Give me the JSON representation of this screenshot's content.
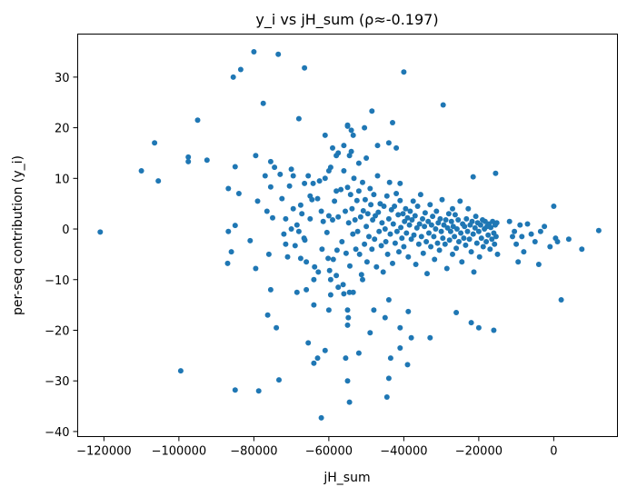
{
  "chart_data": {
    "type": "scatter",
    "title": "y_i vs jH_sum  (ρ≈-0.197)",
    "xlabel": "jH_sum",
    "ylabel": "per-seq contribution (y_i)",
    "xlim": [
      -127000,
      17000
    ],
    "ylim": [
      -41,
      38.5
    ],
    "xticks": [
      -120000,
      -100000,
      -80000,
      -60000,
      -40000,
      -20000,
      0
    ],
    "yticks": [
      -40,
      -30,
      -20,
      -10,
      0,
      10,
      20,
      30
    ],
    "grid": false,
    "color": "#1f77b4",
    "points": [
      [
        -121000,
        -0.6
      ],
      [
        -110000,
        11.5
      ],
      [
        -106500,
        17.0
      ],
      [
        -105500,
        9.5
      ],
      [
        -99500,
        -28.0
      ],
      [
        -97500,
        14.2
      ],
      [
        -97500,
        13.3
      ],
      [
        -95000,
        21.5
      ],
      [
        -92500,
        13.6
      ],
      [
        -87000,
        -6.8
      ],
      [
        -86800,
        -0.5
      ],
      [
        -86800,
        8.0
      ],
      [
        -86000,
        -4.5
      ],
      [
        -85500,
        30.0
      ],
      [
        -85000,
        12.3
      ],
      [
        -85000,
        0.7
      ],
      [
        -85000,
        -31.8
      ],
      [
        -84000,
        7.0
      ],
      [
        -83500,
        31.5
      ],
      [
        -81000,
        -2.3
      ],
      [
        -80000,
        35.0
      ],
      [
        -79500,
        14.5
      ],
      [
        -79500,
        -7.8
      ],
      [
        -79000,
        5.5
      ],
      [
        -78700,
        -32.0
      ],
      [
        -77500,
        24.8
      ],
      [
        -77000,
        10.5
      ],
      [
        -76500,
        3.5
      ],
      [
        -76300,
        -17.0
      ],
      [
        -76000,
        -5.0
      ],
      [
        -75500,
        8.3
      ],
      [
        -75500,
        13.3
      ],
      [
        -75000,
        2.2
      ],
      [
        -74500,
        12.2
      ],
      [
        -74000,
        -19.5
      ],
      [
        -73500,
        34.5
      ],
      [
        -73300,
        -29.8
      ],
      [
        -73000,
        10.8
      ],
      [
        -72000,
        -1.0
      ],
      [
        -71500,
        -3.0
      ],
      [
        -71000,
        -5.5
      ],
      [
        -70500,
        8.5
      ],
      [
        -70000,
        11.8
      ],
      [
        -69500,
        10.5
      ],
      [
        -69000,
        -3.3
      ],
      [
        -68500,
        0.8
      ],
      [
        -68000,
        21.8
      ],
      [
        -67500,
        4.7
      ],
      [
        -67200,
        3.0
      ],
      [
        -66600,
        -1.8
      ],
      [
        -66400,
        -2.2
      ],
      [
        -66000,
        -6.5
      ],
      [
        -65500,
        10.5
      ],
      [
        -65000,
        2.0
      ],
      [
        -64500,
        5.8
      ],
      [
        -64200,
        9.0
      ],
      [
        -63800,
        -7.5
      ],
      [
        -63000,
        6.0
      ],
      [
        -62800,
        -8.5
      ],
      [
        -62000,
        3.5
      ],
      [
        -61800,
        -4.0
      ],
      [
        -61500,
        1.5
      ],
      [
        -61000,
        10.0
      ],
      [
        -60500,
        -0.7
      ],
      [
        -60200,
        -5.8
      ],
      [
        -60000,
        2.6
      ],
      [
        -59800,
        -8.2
      ],
      [
        -59500,
        12.2
      ],
      [
        -59500,
        -10.0
      ],
      [
        -59000,
        1.8
      ],
      [
        -58800,
        -6.0
      ],
      [
        -58500,
        5.5
      ],
      [
        -58000,
        -9.2
      ],
      [
        -57800,
        -4.2
      ],
      [
        -57500,
        2.4
      ],
      [
        -56800,
        7.8
      ],
      [
        -56500,
        -2.5
      ],
      [
        -56200,
        -11.0
      ],
      [
        -56000,
        11.5
      ],
      [
        -55600,
        3.5
      ],
      [
        -55400,
        -4.8
      ],
      [
        -55000,
        8.2
      ],
      [
        -55000,
        -16.0
      ],
      [
        -54700,
        1.2
      ],
      [
        -54400,
        -7.3
      ],
      [
        -54200,
        6.8
      ],
      [
        -54000,
        15.3
      ],
      [
        -53800,
        4.0
      ],
      [
        -53600,
        -1.0
      ],
      [
        -53300,
        10.0
      ],
      [
        -53000,
        1.8
      ],
      [
        -52800,
        -4.0
      ],
      [
        -52500,
        5.6
      ],
      [
        -52300,
        -0.5
      ],
      [
        -52000,
        7.5
      ],
      [
        -51800,
        -5.0
      ],
      [
        -51500,
        2.4
      ],
      [
        -51300,
        -9.0
      ],
      [
        -51000,
        9.2
      ],
      [
        -50800,
        3.6
      ],
      [
        -50500,
        -3.0
      ],
      [
        -50300,
        5.8
      ],
      [
        -50000,
        0.5
      ],
      [
        -49800,
        -6.5
      ],
      [
        -49600,
        3.0
      ],
      [
        -49300,
        -1.5
      ],
      [
        -49000,
        8.0
      ],
      [
        -48800,
        4.8
      ],
      [
        -48500,
        -4.0
      ],
      [
        -48300,
        1.8
      ],
      [
        -48000,
        6.8
      ],
      [
        -47800,
        -2.0
      ],
      [
        -47600,
        2.6
      ],
      [
        -47300,
        -7.5
      ],
      [
        -47000,
        10.5
      ],
      [
        -46800,
        3.3
      ],
      [
        -46600,
        -0.5
      ],
      [
        -46300,
        5.0
      ],
      [
        -46000,
        -3.3
      ],
      [
        -45800,
        1.2
      ],
      [
        -45500,
        -8.5
      ],
      [
        -45300,
        4.5
      ],
      [
        -45000,
        0.0
      ],
      [
        -44800,
        -2.5
      ],
      [
        -44500,
        6.5
      ],
      [
        -44300,
        -5.0
      ],
      [
        -44000,
        2.0
      ],
      [
        -43800,
        9.2
      ],
      [
        -43600,
        -1.0
      ],
      [
        -43300,
        3.8
      ],
      [
        -43000,
        -6.8
      ],
      [
        -42800,
        1.0
      ],
      [
        -42500,
        4.5
      ],
      [
        -42300,
        -2.8
      ],
      [
        -42000,
        7.0
      ],
      [
        -41800,
        -0.5
      ],
      [
        -41500,
        2.8
      ],
      [
        -41300,
        -4.5
      ],
      [
        -41000,
        5.6
      ],
      [
        -40800,
        0.3
      ],
      [
        -40500,
        -1.8
      ],
      [
        -40200,
        3.0
      ],
      [
        -40000,
        -3.5
      ],
      [
        -39800,
        1.5
      ],
      [
        -39500,
        4.0
      ],
      [
        -39300,
        -0.8
      ],
      [
        -39000,
        2.2
      ],
      [
        -38800,
        -5.5
      ],
      [
        -38500,
        0.8
      ],
      [
        -38300,
        3.5
      ],
      [
        -38000,
        -2.0
      ],
      [
        -37800,
        1.8
      ],
      [
        -37500,
        5.5
      ],
      [
        -37300,
        -1.2
      ],
      [
        -37000,
        2.6
      ],
      [
        -36800,
        -7.0
      ],
      [
        -36500,
        0.2
      ],
      [
        -36300,
        4.5
      ],
      [
        -36000,
        -3.0
      ],
      [
        -35800,
        1.0
      ],
      [
        -35500,
        6.8
      ],
      [
        -35300,
        -1.5
      ],
      [
        -35000,
        2.0
      ],
      [
        -34800,
        -4.8
      ],
      [
        -34500,
        0.5
      ],
      [
        -34300,
        3.2
      ],
      [
        -34000,
        -2.5
      ],
      [
        -33800,
        -8.8
      ],
      [
        -33500,
        1.5
      ],
      [
        -33300,
        -0.8
      ],
      [
        -33000,
        4.8
      ],
      [
        -32800,
        -3.5
      ],
      [
        -32600,
        0.8
      ],
      [
        -32300,
        2.5
      ],
      [
        -32000,
        -1.5
      ],
      [
        -31800,
        -6.0
      ],
      [
        -31500,
        0.0
      ],
      [
        -31300,
        3.5
      ],
      [
        -31000,
        -2.8
      ],
      [
        -30800,
        1.2
      ],
      [
        -30500,
        -4.2
      ],
      [
        -30300,
        2.0
      ],
      [
        -30000,
        -0.5
      ],
      [
        -29800,
        5.8
      ],
      [
        -29600,
        -1.8
      ],
      [
        -29300,
        0.8
      ],
      [
        -29000,
        -3.0
      ],
      [
        -28800,
        1.8
      ],
      [
        -28500,
        -7.8
      ],
      [
        -28300,
        0.2
      ],
      [
        -28000,
        3.0
      ],
      [
        -27800,
        -2.2
      ],
      [
        -27500,
        -0.5
      ],
      [
        -27300,
        1.5
      ],
      [
        -27000,
        -5.0
      ],
      [
        -26800,
        0.5
      ],
      [
        -26500,
        -1.5
      ],
      [
        -26300,
        2.8
      ],
      [
        -26000,
        -3.8
      ],
      [
        -25800,
        0.0
      ],
      [
        -25500,
        1.8
      ],
      [
        -25300,
        -2.5
      ],
      [
        -25000,
        5.5
      ],
      [
        -24800,
        -0.8
      ],
      [
        -24500,
        -6.5
      ],
      [
        -24300,
        1.0
      ],
      [
        -24000,
        -1.8
      ],
      [
        -23800,
        0.5
      ],
      [
        -23500,
        -3.2
      ],
      [
        -23300,
        2.0
      ],
      [
        -23000,
        -0.5
      ],
      [
        -22800,
        4.0
      ],
      [
        -22500,
        -2.0
      ],
      [
        -22300,
        0.8
      ],
      [
        -22000,
        -4.5
      ],
      [
        -21800,
        1.5
      ],
      [
        -21500,
        -1.0
      ],
      [
        -21300,
        -8.5
      ],
      [
        -21000,
        0.2
      ],
      [
        -20800,
        2.5
      ],
      [
        -20500,
        -2.8
      ],
      [
        -20300,
        1.2
      ],
      [
        -20000,
        -0.5
      ],
      [
        -19800,
        -5.5
      ],
      [
        -19500,
        0.8
      ],
      [
        -19300,
        -1.8
      ],
      [
        -19000,
        1.8
      ],
      [
        -18800,
        -3.5
      ],
      [
        -18500,
        0.0
      ],
      [
        -18300,
        1.5
      ],
      [
        -18000,
        -2.5
      ],
      [
        -17800,
        0.5
      ],
      [
        -17500,
        -1.2
      ],
      [
        -17300,
        1.0
      ],
      [
        -17000,
        -4.0
      ],
      [
        -16800,
        0.3
      ],
      [
        -16500,
        -2.0
      ],
      [
        -16300,
        1.5
      ],
      [
        -16000,
        -0.8
      ],
      [
        -15800,
        -3.0
      ],
      [
        -15600,
        0.8
      ],
      [
        -15400,
        -1.5
      ],
      [
        -15200,
        1.2
      ],
      [
        -15000,
        -5.0
      ],
      [
        -27000,
        4.0
      ],
      [
        -21500,
        10.3
      ],
      [
        -15500,
        11.0
      ],
      [
        -11800,
        1.5
      ],
      [
        -11000,
        -1.5
      ],
      [
        -10500,
        -0.5
      ],
      [
        -10000,
        -3.0
      ],
      [
        -9500,
        -6.5
      ],
      [
        -9000,
        0.8
      ],
      [
        -8500,
        -1.5
      ],
      [
        -8000,
        -4.5
      ],
      [
        -7000,
        1.0
      ],
      [
        -6000,
        -1.0
      ],
      [
        -5000,
        -2.5
      ],
      [
        -4000,
        -7.0
      ],
      [
        -3500,
        -0.5
      ],
      [
        -2500,
        0.5
      ],
      [
        -1000,
        -3.5
      ],
      [
        0,
        4.5
      ],
      [
        500,
        -1.8
      ],
      [
        1000,
        -2.5
      ],
      [
        2000,
        -14.0
      ],
      [
        4000,
        -2.0
      ],
      [
        7500,
        -4.0
      ],
      [
        12000,
        -0.3
      ],
      [
        -20000,
        -19.5
      ],
      [
        -26000,
        -16.5
      ],
      [
        -22000,
        -18.5
      ],
      [
        -29500,
        24.5
      ],
      [
        -16000,
        -20.0
      ],
      [
        -33000,
        -21.5
      ],
      [
        -38000,
        -21.5
      ],
      [
        -40000,
        31.0
      ],
      [
        -41000,
        -19.5
      ],
      [
        -43000,
        21.0
      ],
      [
        -44000,
        17.0
      ],
      [
        -42000,
        16.0
      ],
      [
        -43500,
        -25.5
      ],
      [
        -44000,
        -29.5
      ],
      [
        -44500,
        -33.2
      ],
      [
        -44000,
        -14.0
      ],
      [
        -39000,
        -26.8
      ],
      [
        -38800,
        -16.3
      ],
      [
        -41000,
        -23.5
      ],
      [
        -45000,
        -17.5
      ],
      [
        -41000,
        9.0
      ],
      [
        -48500,
        23.3
      ],
      [
        -50500,
        20.0
      ],
      [
        -47000,
        16.5
      ],
      [
        -53500,
        18.5
      ],
      [
        -54000,
        19.5
      ],
      [
        -55000,
        20.3
      ],
      [
        -55000,
        20.5
      ],
      [
        -56000,
        16.5
      ],
      [
        -58000,
        14.5
      ],
      [
        -59000,
        16.0
      ],
      [
        -60000,
        11.5
      ],
      [
        -57500,
        15.0
      ],
      [
        -52000,
        13.0
      ],
      [
        -50000,
        14.0
      ],
      [
        -54500,
        14.5
      ],
      [
        -61000,
        18.5
      ],
      [
        -53500,
        -12.5
      ],
      [
        -54500,
        -12.5
      ],
      [
        -49000,
        -20.5
      ],
      [
        -51000,
        -10.0
      ],
      [
        -52000,
        -24.5
      ],
      [
        -55000,
        -19.0
      ],
      [
        -54800,
        -17.5
      ],
      [
        -55500,
        -25.5
      ],
      [
        -55000,
        -30.0
      ],
      [
        -54500,
        -34.2
      ],
      [
        -48000,
        -16.0
      ],
      [
        -62000,
        -37.3
      ],
      [
        -61000,
        -24.0
      ],
      [
        -63000,
        -25.5
      ],
      [
        -64000,
        -26.5
      ],
      [
        -65500,
        -22.5
      ],
      [
        -64000,
        -15.0
      ],
      [
        -64000,
        -10.0
      ],
      [
        -60000,
        -16.0
      ],
      [
        -66000,
        -12.0
      ],
      [
        -67500,
        -5.8
      ],
      [
        -68500,
        -12.5
      ],
      [
        -59500,
        -13.0
      ],
      [
        -57500,
        -11.5
      ],
      [
        -56000,
        -12.8
      ],
      [
        -75500,
        -12.0
      ],
      [
        -71500,
        2.0
      ],
      [
        -69500,
        4.0
      ],
      [
        -65000,
        6.5
      ],
      [
        -66500,
        9.0
      ],
      [
        -62500,
        9.5
      ],
      [
        -58000,
        7.5
      ],
      [
        -66500,
        31.8
      ],
      [
        -68000,
        -0.5
      ],
      [
        -70000,
        0.0
      ],
      [
        -72500,
        6.0
      ]
    ]
  }
}
